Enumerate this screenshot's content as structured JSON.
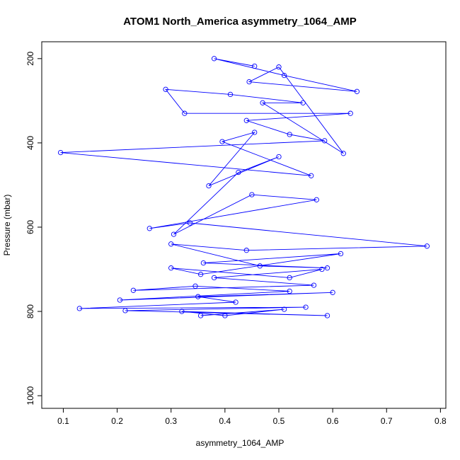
{
  "chart_data": {
    "type": "line",
    "title": "ATOM1 North_America asymmetry_1064_AMP",
    "xlabel": "asymmetry_1064_AMP",
    "ylabel": "Pressure (mbar)",
    "xlim": [
      0.06,
      0.81
    ],
    "ylim": [
      1030,
      160
    ],
    "y_reversed": true,
    "x_ticks": [
      0.1,
      0.2,
      0.3,
      0.4,
      0.5,
      0.6,
      0.7,
      0.8
    ],
    "x_tick_labels": [
      "0.1",
      "0.2",
      "0.3",
      "0.4",
      "0.5",
      "0.6",
      "0.7",
      "0.8"
    ],
    "y_ticks": [
      200,
      400,
      600,
      800,
      1000
    ],
    "y_tick_labels": [
      "200",
      "400",
      "600",
      "800",
      "1000"
    ],
    "grid": false,
    "legend": "none",
    "color": "#0000ff",
    "marker": "open-circle",
    "series": [
      {
        "x": [
          0.455,
          0.38,
          0.51,
          0.645,
          0.445,
          0.5,
          0.62,
          0.47,
          0.545,
          0.41,
          0.29,
          0.325,
          0.633,
          0.44,
          0.52,
          0.585,
          0.095,
          0.56,
          0.395,
          0.455,
          0.37,
          0.5,
          0.425,
          0.305,
          0.45,
          0.57,
          0.26,
          0.335,
          0.775,
          0.44,
          0.3,
          0.465,
          0.59,
          0.36,
          0.615,
          0.355,
          0.3,
          0.52,
          0.58,
          0.38,
          0.565,
          0.23,
          0.345,
          0.52,
          0.205,
          0.6,
          0.35,
          0.42,
          0.13,
          0.55,
          0.215,
          0.59,
          0.32,
          0.4,
          0.51,
          0.355
        ],
        "y": [
          218,
          200,
          240,
          278,
          255,
          220,
          425,
          305,
          305,
          285,
          273,
          330,
          330,
          347,
          380,
          395,
          423,
          478,
          397,
          375,
          502,
          433,
          470,
          617,
          523,
          535,
          603,
          590,
          645,
          655,
          640,
          692,
          697,
          685,
          663,
          712,
          697,
          720,
          700,
          720,
          738,
          750,
          740,
          752,
          773,
          755,
          765,
          778,
          793,
          790,
          798,
          810,
          800,
          810,
          795,
          810
        ]
      }
    ]
  }
}
